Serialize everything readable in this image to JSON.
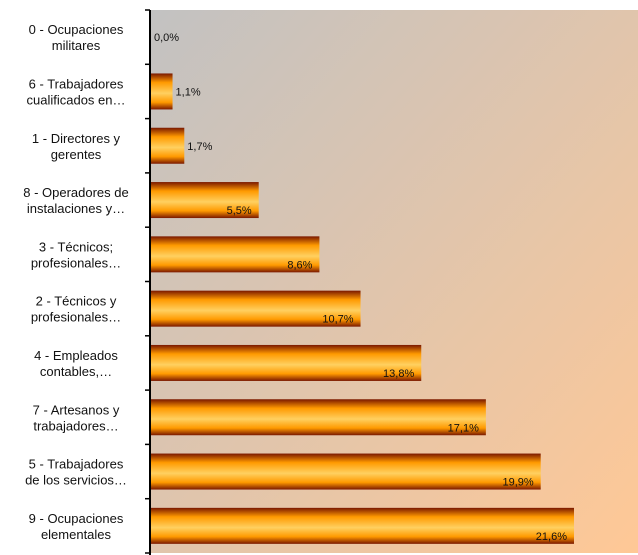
{
  "chart_data": {
    "type": "bar",
    "orientation": "horizontal",
    "title": "",
    "xlabel": "",
    "ylabel": "",
    "grid": false,
    "legend": "none",
    "xlim": [
      0,
      25
    ],
    "categories": [
      [
        "0 - Ocupaciones",
        "militares"
      ],
      [
        "6 - Trabajadores",
        "cualificados en…"
      ],
      [
        "1 - Directores y",
        "gerentes"
      ],
      [
        "8 - Operadores de",
        "instalaciones y…"
      ],
      [
        "3 - Técnicos;",
        "profesionales…"
      ],
      [
        "2 - Técnicos y",
        "profesionales…"
      ],
      [
        "4 - Empleados",
        "contables,…"
      ],
      [
        "7 - Artesanos y",
        "trabajadores…"
      ],
      [
        "5 - Trabajadores",
        "de los servicios…"
      ],
      [
        "9 - Ocupaciones",
        "elementales"
      ]
    ],
    "values": [
      0.0,
      1.1,
      1.7,
      5.5,
      8.6,
      10.7,
      13.8,
      17.1,
      19.9,
      21.6
    ],
    "value_labels": [
      "0,0%",
      "1,1%",
      "1,7%",
      "5,5%",
      "8,6%",
      "10,7%",
      "13,8%",
      "17,1%",
      "19,9%",
      "21,6%"
    ],
    "colors": {
      "plot_bg_top": "#c2c2c2",
      "plot_bg_bottom": "#ffc896",
      "bar_dark": "#7a1800",
      "bar_mid": "#ff9a00",
      "bar_light": "#ffd060",
      "axis": "#000000"
    }
  }
}
